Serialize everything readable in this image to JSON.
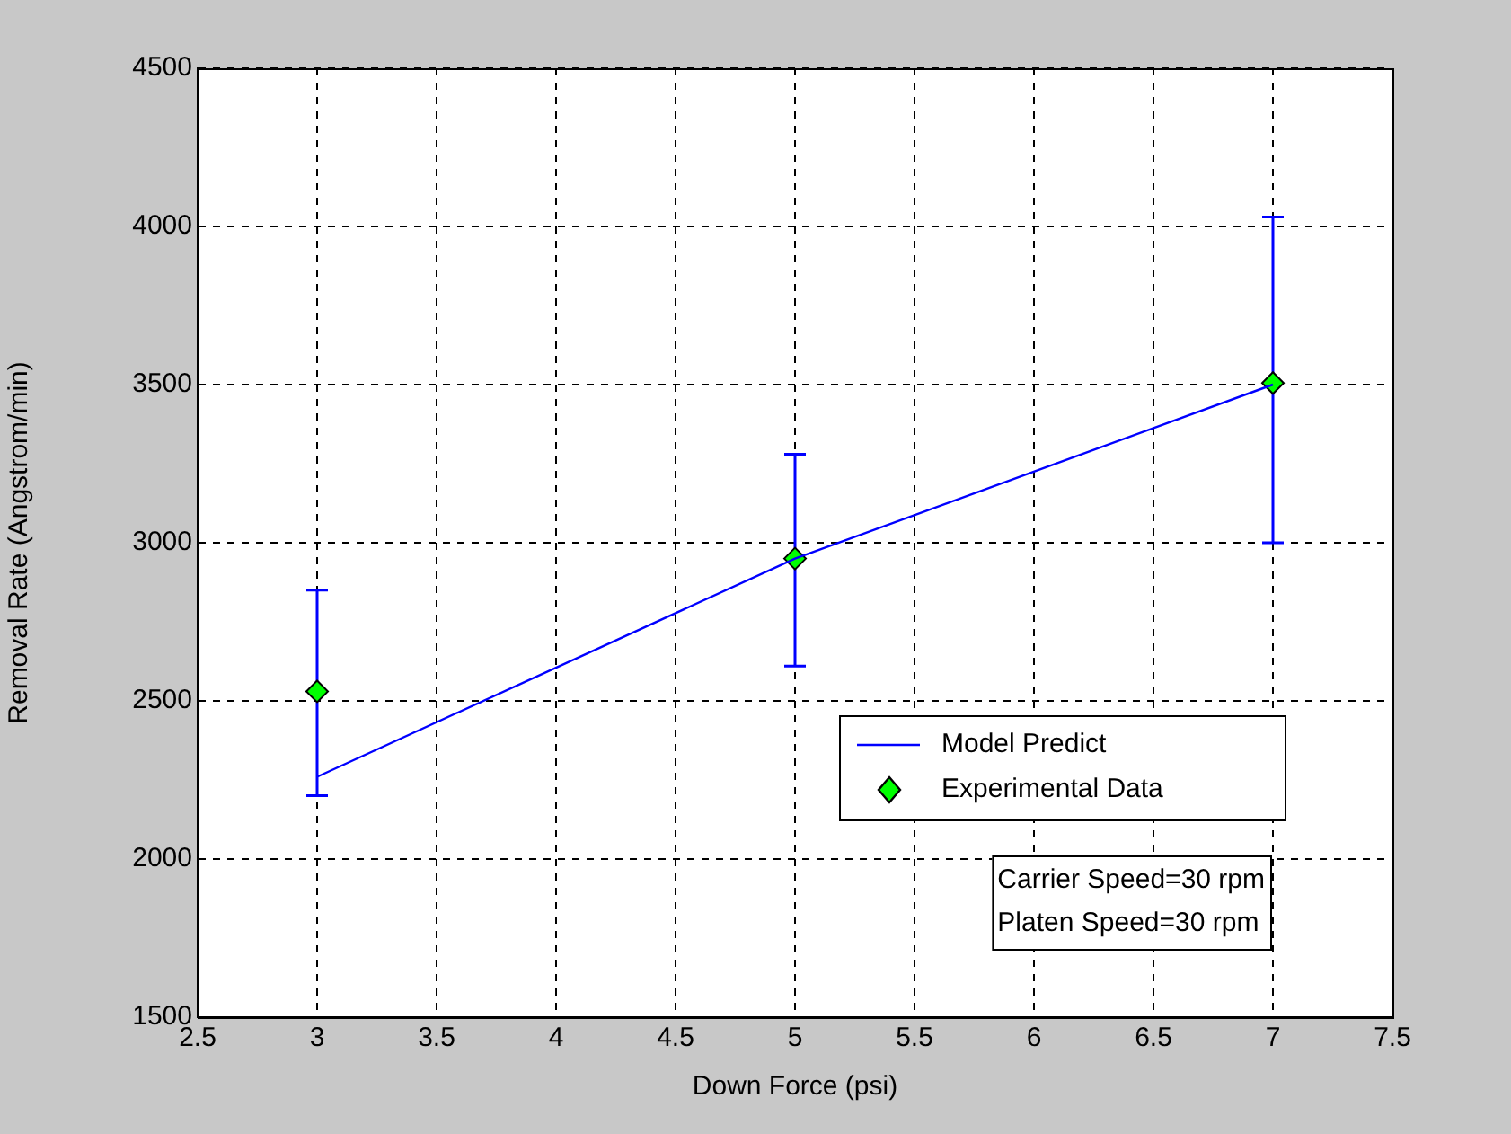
{
  "chart_data": {
    "type": "line",
    "xlabel": "Down Force (psi)",
    "ylabel": "Removal Rate (Angstrom/min)",
    "x": [
      3,
      5,
      7
    ],
    "series": [
      {
        "name": "Model Predict",
        "type": "line",
        "color": "#0000ff",
        "values": [
          2260,
          2950,
          3500
        ],
        "marker": "none"
      },
      {
        "name": "Experimental Data",
        "type": "scatter",
        "color": "#00ff00",
        "values": [
          2530,
          2950,
          3505
        ],
        "marker": "diamond",
        "errors": [
          [
            2200,
            2850
          ],
          [
            2610,
            3280
          ],
          [
            3000,
            4030
          ]
        ]
      }
    ],
    "xlim": [
      2.5,
      7.5
    ],
    "xticks": [
      2.5,
      3,
      3.5,
      4,
      4.5,
      5,
      5.5,
      6,
      6.5,
      7,
      7.5
    ],
    "ylim": [
      1500,
      4500
    ],
    "yticks": [
      1500,
      2000,
      2500,
      3000,
      3500,
      4000,
      4500
    ],
    "grid": true,
    "legend": "bottom right",
    "annotations": [
      "Carrier Speed=30 rpm\nPlaten Speed=30 rpm"
    ]
  }
}
